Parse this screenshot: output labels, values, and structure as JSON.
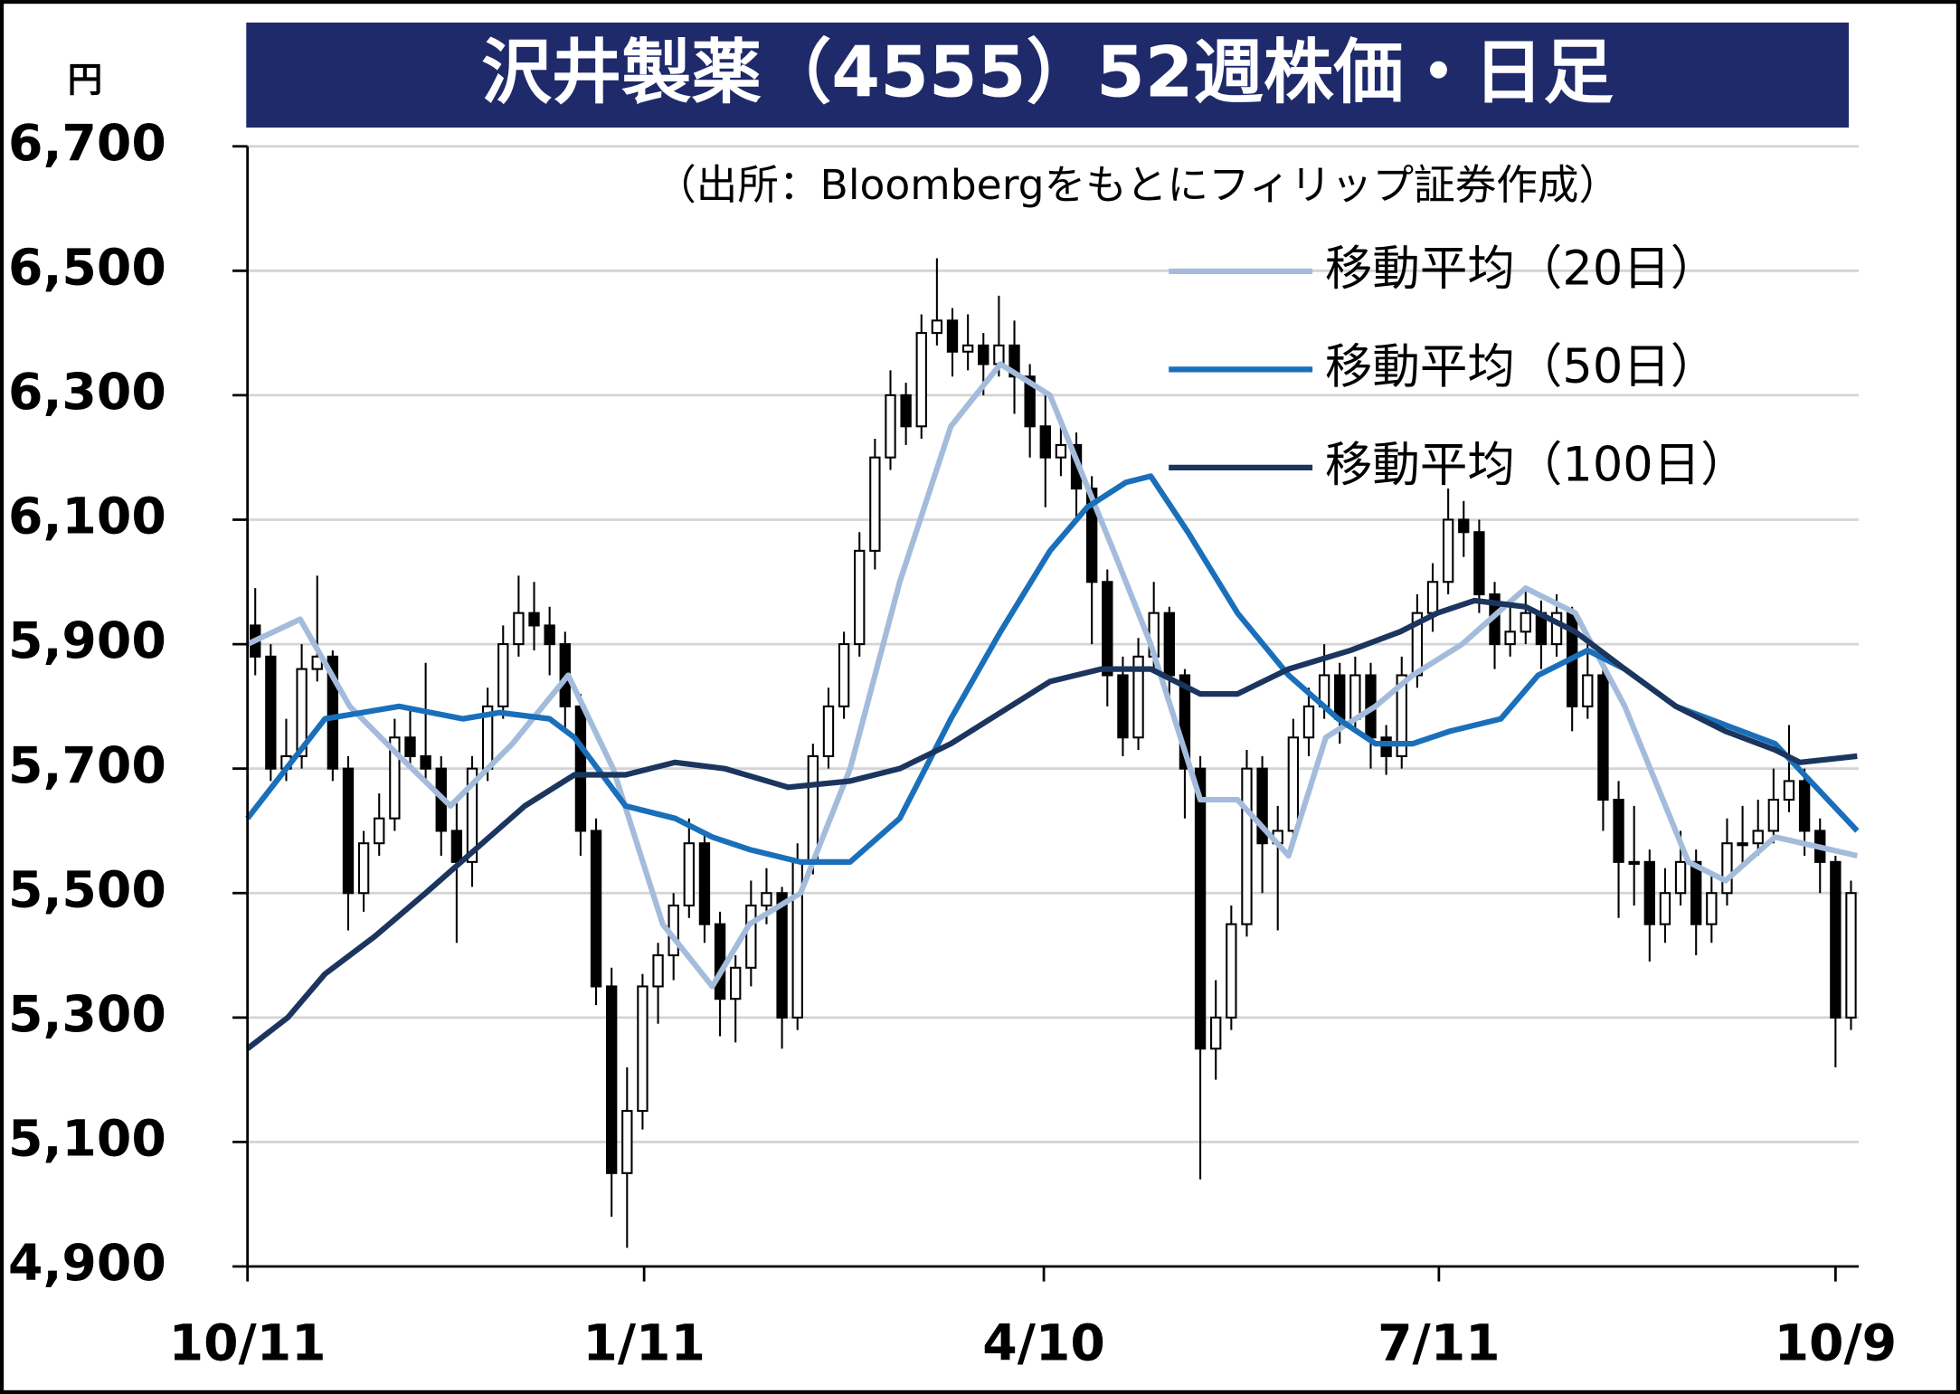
{
  "chart_data": {
    "type": "candlestick",
    "title": "沢井製薬（4555）52週株価・日足",
    "subtitle": "（出所：Bloombergをもとにフィリップ証券作成）",
    "y_label": "円",
    "ylim": [
      4900,
      6700
    ],
    "yticks": [
      {
        "value": 4900,
        "label": "4,900"
      },
      {
        "value": 5100,
        "label": "5,100"
      },
      {
        "value": 5300,
        "label": "5,300"
      },
      {
        "value": 5500,
        "label": "5,500"
      },
      {
        "value": 5700,
        "label": "5,700"
      },
      {
        "value": 5900,
        "label": "5,900"
      },
      {
        "value": 6100,
        "label": "6,100"
      },
      {
        "value": 6300,
        "label": "6,300"
      },
      {
        "value": 6500,
        "label": "6,500"
      },
      {
        "value": 6700,
        "label": "6,700"
      }
    ],
    "xlim": [
      0,
      104
    ],
    "xticks": [
      {
        "value": 0,
        "label": "10/11"
      },
      {
        "value": 25.6,
        "label": "1/11"
      },
      {
        "value": 51.4,
        "label": "4/10"
      },
      {
        "value": 76.9,
        "label": "7/11"
      },
      {
        "value": 102.5,
        "label": "10/9"
      }
    ],
    "grid": true,
    "up_color": "#ffffff",
    "down_color": "#000000",
    "candles": [
      [
        5930,
        5990,
        5850,
        5880
      ],
      [
        5880,
        5900,
        5680,
        5700
      ],
      [
        5700,
        5780,
        5680,
        5720
      ],
      [
        5720,
        5900,
        5700,
        5860
      ],
      [
        5860,
        6010,
        5840,
        5880
      ],
      [
        5880,
        5890,
        5680,
        5700
      ],
      [
        5700,
        5720,
        5440,
        5500
      ],
      [
        5500,
        5600,
        5470,
        5580
      ],
      [
        5580,
        5660,
        5560,
        5620
      ],
      [
        5620,
        5780,
        5600,
        5750
      ],
      [
        5750,
        5800,
        5700,
        5720
      ],
      [
        5720,
        5870,
        5680,
        5700
      ],
      [
        5700,
        5720,
        5560,
        5600
      ],
      [
        5600,
        5650,
        5420,
        5550
      ],
      [
        5550,
        5720,
        5510,
        5700
      ],
      [
        5700,
        5830,
        5680,
        5800
      ],
      [
        5800,
        5930,
        5780,
        5900
      ],
      [
        5900,
        6010,
        5880,
        5950
      ],
      [
        5950,
        6000,
        5890,
        5930
      ],
      [
        5930,
        5960,
        5850,
        5900
      ],
      [
        5900,
        5920,
        5760,
        5800
      ],
      [
        5800,
        5820,
        5560,
        5600
      ],
      [
        5600,
        5620,
        5320,
        5350
      ],
      [
        5350,
        5380,
        4980,
        5050
      ],
      [
        5050,
        5220,
        4930,
        5150
      ],
      [
        5150,
        5370,
        5120,
        5350
      ],
      [
        5350,
        5420,
        5290,
        5400
      ],
      [
        5400,
        5500,
        5360,
        5480
      ],
      [
        5480,
        5620,
        5460,
        5580
      ],
      [
        5580,
        5600,
        5420,
        5450
      ],
      [
        5450,
        5470,
        5270,
        5330
      ],
      [
        5330,
        5400,
        5260,
        5380
      ],
      [
        5380,
        5520,
        5350,
        5480
      ],
      [
        5480,
        5540,
        5450,
        5500
      ],
      [
        5500,
        5510,
        5250,
        5300
      ],
      [
        5300,
        5580,
        5280,
        5550
      ],
      [
        5550,
        5740,
        5530,
        5720
      ],
      [
        5720,
        5830,
        5700,
        5800
      ],
      [
        5800,
        5920,
        5780,
        5900
      ],
      [
        5900,
        6080,
        5880,
        6050
      ],
      [
        6050,
        6230,
        6020,
        6200
      ],
      [
        6200,
        6340,
        6180,
        6300
      ],
      [
        6300,
        6320,
        6220,
        6250
      ],
      [
        6250,
        6430,
        6230,
        6400
      ],
      [
        6400,
        6520,
        6380,
        6420
      ],
      [
        6420,
        6440,
        6330,
        6370
      ],
      [
        6370,
        6430,
        6340,
        6380
      ],
      [
        6380,
        6400,
        6300,
        6350
      ],
      [
        6350,
        6460,
        6330,
        6380
      ],
      [
        6380,
        6420,
        6270,
        6330
      ],
      [
        6330,
        6350,
        6200,
        6250
      ],
      [
        6250,
        6300,
        6120,
        6200
      ],
      [
        6200,
        6260,
        6170,
        6220
      ],
      [
        6220,
        6240,
        6100,
        6150
      ],
      [
        6150,
        6170,
        5900,
        6000
      ],
      [
        6000,
        6020,
        5800,
        5850
      ],
      [
        5850,
        5880,
        5720,
        5750
      ],
      [
        5750,
        5910,
        5730,
        5880
      ],
      [
        5880,
        6000,
        5860,
        5950
      ],
      [
        5950,
        5960,
        5800,
        5850
      ],
      [
        5850,
        5860,
        5620,
        5700
      ],
      [
        5700,
        5720,
        5040,
        5250
      ],
      [
        5250,
        5360,
        5200,
        5300
      ],
      [
        5300,
        5480,
        5280,
        5450
      ],
      [
        5450,
        5730,
        5430,
        5700
      ],
      [
        5700,
        5720,
        5500,
        5580
      ],
      [
        5580,
        5640,
        5440,
        5600
      ],
      [
        5600,
        5780,
        5580,
        5750
      ],
      [
        5750,
        5830,
        5720,
        5800
      ],
      [
        5800,
        5900,
        5780,
        5850
      ],
      [
        5850,
        5870,
        5740,
        5780
      ],
      [
        5780,
        5880,
        5760,
        5850
      ],
      [
        5850,
        5870,
        5700,
        5750
      ],
      [
        5750,
        5770,
        5690,
        5720
      ],
      [
        5720,
        5880,
        5700,
        5850
      ],
      [
        5850,
        5980,
        5830,
        5950
      ],
      [
        5950,
        6030,
        5920,
        6000
      ],
      [
        6000,
        6150,
        5980,
        6100
      ],
      [
        6100,
        6130,
        6040,
        6080
      ],
      [
        6080,
        6100,
        5950,
        5980
      ],
      [
        5980,
        6000,
        5860,
        5900
      ],
      [
        5900,
        5960,
        5880,
        5920
      ],
      [
        5920,
        5990,
        5900,
        5950
      ],
      [
        5950,
        5970,
        5860,
        5900
      ],
      [
        5900,
        5980,
        5880,
        5950
      ],
      [
        5950,
        5960,
        5760,
        5800
      ],
      [
        5800,
        5900,
        5780,
        5850
      ],
      [
        5850,
        5870,
        5600,
        5650
      ],
      [
        5650,
        5680,
        5460,
        5550
      ],
      [
        5550,
        5640,
        5480,
        5550
      ],
      [
        5550,
        5570,
        5390,
        5450
      ],
      [
        5450,
        5540,
        5420,
        5500
      ],
      [
        5500,
        5600,
        5480,
        5550
      ],
      [
        5550,
        5570,
        5400,
        5450
      ],
      [
        5450,
        5530,
        5420,
        5500
      ],
      [
        5500,
        5620,
        5480,
        5580
      ],
      [
        5580,
        5640,
        5540,
        5580
      ],
      [
        5580,
        5650,
        5560,
        5600
      ],
      [
        5600,
        5700,
        5580,
        5650
      ],
      [
        5650,
        5770,
        5630,
        5680
      ],
      [
        5680,
        5700,
        5560,
        5600
      ],
      [
        5600,
        5620,
        5500,
        5550
      ],
      [
        5550,
        5560,
        5220,
        5300
      ],
      [
        5300,
        5520,
        5280,
        5500
      ]
    ],
    "series": [
      {
        "name": "移動平均（20日）",
        "color": "#a4bcdb",
        "x": [
          0,
          3.4,
          6.6,
          9.8,
          13.1,
          17.1,
          20.7,
          23.6,
          26.8,
          30.0,
          32.4,
          35.7,
          38.9,
          42.1,
          45.4,
          48.6,
          51.8,
          55.9,
          58.3,
          61.5,
          63.9,
          67.2,
          69.6,
          72.8,
          75.2,
          78.4,
          82.5,
          85.7,
          88.9,
          93.0,
          95.4,
          98.6,
          103.9
        ],
        "values": [
          5900,
          5940,
          5800,
          5720,
          5640,
          5740,
          5850,
          5700,
          5450,
          5350,
          5450,
          5500,
          5700,
          6000,
          6250,
          6350,
          6300,
          6050,
          5900,
          5650,
          5650,
          5560,
          5750,
          5800,
          5850,
          5900,
          5990,
          5950,
          5800,
          5550,
          5520,
          5590,
          5560
        ]
      },
      {
        "name": "移動平均（50日）",
        "color": "#1a6fba",
        "x": [
          0,
          5.0,
          9.8,
          13.9,
          16.3,
          19.5,
          21.1,
          24.4,
          27.6,
          30.0,
          32.4,
          35.7,
          38.9,
          42.1,
          45.4,
          48.6,
          51.8,
          54.2,
          56.7,
          58.3,
          60.7,
          63.9,
          67.2,
          70.4,
          72.8,
          75.2,
          77.6,
          80.9,
          83.3,
          86.5,
          88.9,
          92.2,
          95.4,
          98.6,
          103.9
        ],
        "values": [
          5620,
          5780,
          5800,
          5780,
          5790,
          5780,
          5750,
          5640,
          5620,
          5590,
          5570,
          5550,
          5550,
          5620,
          5780,
          5920,
          6050,
          6120,
          6160,
          6170,
          6080,
          5950,
          5850,
          5780,
          5740,
          5740,
          5760,
          5780,
          5850,
          5890,
          5860,
          5800,
          5770,
          5740,
          5600
        ]
      },
      {
        "name": "移動平均（100日）",
        "color": "#1b355e",
        "x": [
          0,
          2.6,
          5.0,
          8.2,
          11.5,
          14.7,
          17.9,
          21.1,
          24.4,
          27.6,
          30.8,
          34.9,
          38.9,
          42.1,
          45.4,
          48.6,
          51.8,
          55.1,
          58.3,
          61.5,
          63.9,
          67.2,
          71.2,
          74.4,
          76.8,
          79.2,
          82.5,
          85.7,
          88.9,
          92.2,
          95.4,
          98.6,
          100.2,
          103.9
        ],
        "values": [
          5250,
          5300,
          5370,
          5430,
          5500,
          5570,
          5640,
          5690,
          5690,
          5710,
          5700,
          5670,
          5680,
          5700,
          5740,
          5790,
          5840,
          5860,
          5860,
          5820,
          5820,
          5860,
          5890,
          5920,
          5950,
          5970,
          5960,
          5920,
          5860,
          5800,
          5760,
          5730,
          5710,
          5720
        ]
      }
    ]
  }
}
